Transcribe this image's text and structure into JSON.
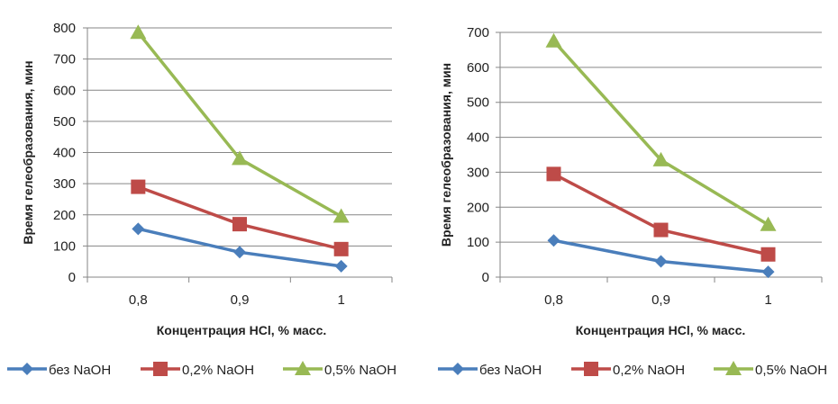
{
  "colors": {
    "blue": "#4a7ebb",
    "red": "#be4b48",
    "green": "#98b954",
    "grid": "#868686"
  },
  "chart_data": [
    {
      "type": "line",
      "title": "",
      "xlabel": "Концентрация  HCl, % масс.",
      "ylabel": "Время  гелеобразования, мин",
      "categories": [
        "0,8",
        "0,9",
        "1"
      ],
      "ylim": [
        0,
        800
      ],
      "yticks": [
        "0",
        "100",
        "200",
        "300",
        "400",
        "500",
        "600",
        "700",
        "800"
      ],
      "grid": true,
      "legend": "bottom",
      "series": [
        {
          "name": "без NaOH",
          "marker": "diamond",
          "color": "#4a7ebb",
          "values": [
            155,
            80,
            35
          ]
        },
        {
          "name": "0,2% NaOH",
          "marker": "square",
          "color": "#be4b48",
          "values": [
            290,
            170,
            90
          ]
        },
        {
          "name": "0,5% NaOH",
          "marker": "triangle",
          "color": "#98b954",
          "values": [
            785,
            380,
            195
          ]
        }
      ]
    },
    {
      "type": "line",
      "title": "",
      "xlabel": "Концентрация  HCl, % масс.",
      "ylabel": "Время  гелеобразования, мин",
      "categories": [
        "0,8",
        "0,9",
        "1"
      ],
      "ylim": [
        0,
        700
      ],
      "yticks": [
        "0",
        "100",
        "200",
        "300",
        "400",
        "500",
        "600",
        "700"
      ],
      "grid": true,
      "legend": "bottom",
      "series": [
        {
          "name": "без NaOH",
          "marker": "diamond",
          "color": "#4a7ebb",
          "values": [
            105,
            45,
            15
          ]
        },
        {
          "name": "0,2% NaOH",
          "marker": "square",
          "color": "#be4b48",
          "values": [
            295,
            135,
            65
          ]
        },
        {
          "name": "0,5% NaOH",
          "marker": "triangle",
          "color": "#98b954",
          "values": [
            675,
            335,
            150
          ]
        }
      ]
    }
  ]
}
